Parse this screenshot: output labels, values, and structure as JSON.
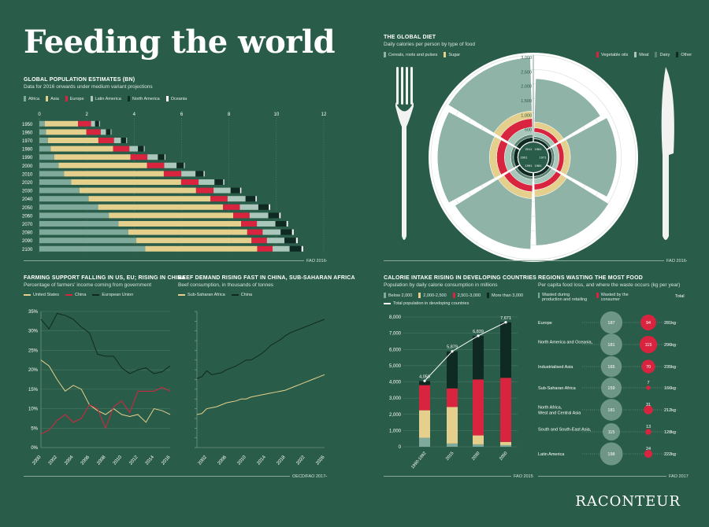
{
  "page": {
    "title": "Feeding the world",
    "brand": "RACONTEUR"
  },
  "colors": {
    "africa": "#7fa99a",
    "asia": "#e4d08c",
    "europe": "#d9243f",
    "latam": "#a9c8bb",
    "namerica": "#0f2a22",
    "oceania": "#ffffff",
    "bg": "#2a5c4a",
    "grid": "#4f7c6a",
    "line_light": "#e4d08c",
    "line_red": "#d9243f",
    "line_dark": "#0f2a22"
  },
  "population": {
    "heading": "GLOBAL POPULATION ESTIMATES (BN)",
    "subheading": "Data for 2016 onwards under medium variant projections",
    "source": "FAO 2016",
    "legend": [
      "Africa",
      "Asia",
      "Europe",
      "Latin America",
      "North America",
      "Oceania"
    ]
  },
  "diet": {
    "heading": "THE GLOBAL DIET",
    "subheading": "Daily calories per person by type of food",
    "source": "FAO 2016",
    "legend_left": [
      "Cereals, roots and pulses",
      "Sugar"
    ],
    "legend_right": [
      "Vegetable oils",
      "Meat",
      "Dairy",
      "Other"
    ]
  },
  "farming": {
    "heading": "FARMING SUPPORT FALLING IN US, EU; RISING IN CHINA",
    "subheading": "Percentage of farmers' income coming from government",
    "legend": [
      "United States",
      "China",
      "European Union"
    ]
  },
  "beef": {
    "heading": "BEEF DEMAND RISING FAST IN CHINA, SUB-SAHARAN AFRICA",
    "subheading": "Beef consumption, in thousands of tonnes",
    "legend": [
      "Sub-Saharan Africa",
      "China"
    ],
    "source": "OECD/FAO 2017"
  },
  "calorie": {
    "heading": "CALORIE INTAKE RISING IN DEVELOPING COUNTRIES",
    "subheading": "Population by daily calorie consumption in millions",
    "legend": [
      "Below 2,000",
      "2,000-2,500",
      "2,501-3,000",
      "More than 3,000",
      "Total population in developing countries"
    ],
    "source": "FAO 2015"
  },
  "waste": {
    "heading": "REGIONS WASTING THE MOST FOOD",
    "subheading": "Per capita food loss, and where the waste occurs (kg per year)",
    "legend_a": "Wasted during production and retailing",
    "legend_b": "Wasted by the consumer",
    "total_label": "Total",
    "source": "FAO 2017"
  },
  "chart_data": [
    {
      "type": "bar",
      "subtype": "stacked-horizontal",
      "categories": [
        "1950",
        "1960",
        "1970",
        "1980",
        "1990",
        "2000",
        "2010",
        "2020",
        "2030",
        "2040",
        "2050",
        "2060",
        "2070",
        "2080",
        "2090",
        "2100"
      ],
      "xlim": [
        0,
        12
      ],
      "xticks": [
        "0",
        "2",
        "4",
        "6",
        "8",
        "10",
        "12"
      ],
      "series": [
        {
          "name": "Africa",
          "values": [
            0.23,
            0.28,
            0.36,
            0.48,
            0.63,
            0.81,
            1.04,
            1.34,
            1.69,
            2.08,
            2.48,
            2.93,
            3.34,
            3.75,
            4.09,
            4.47
          ]
        },
        {
          "name": "Asia",
          "values": [
            1.4,
            1.7,
            2.13,
            2.63,
            3.21,
            3.73,
            4.21,
            4.64,
            4.92,
            5.14,
            5.27,
            5.25,
            5.17,
            5.02,
            4.86,
            4.72
          ]
        },
        {
          "name": "Europe",
          "values": [
            0.55,
            0.61,
            0.66,
            0.69,
            0.72,
            0.73,
            0.74,
            0.74,
            0.74,
            0.72,
            0.71,
            0.69,
            0.67,
            0.65,
            0.65,
            0.65
          ]
        },
        {
          "name": "Latin America",
          "values": [
            0.17,
            0.22,
            0.29,
            0.36,
            0.44,
            0.52,
            0.6,
            0.67,
            0.72,
            0.76,
            0.78,
            0.79,
            0.78,
            0.76,
            0.74,
            0.72
          ]
        },
        {
          "name": "North America",
          "values": [
            0.17,
            0.2,
            0.23,
            0.25,
            0.28,
            0.31,
            0.34,
            0.37,
            0.4,
            0.42,
            0.44,
            0.46,
            0.47,
            0.48,
            0.49,
            0.5
          ]
        },
        {
          "name": "Oceania",
          "values": [
            0.01,
            0.02,
            0.02,
            0.02,
            0.03,
            0.03,
            0.04,
            0.04,
            0.05,
            0.05,
            0.06,
            0.06,
            0.06,
            0.07,
            0.07,
            0.07
          ]
        }
      ]
    },
    {
      "type": "radial-bar",
      "title": "THE GLOBAL DIET",
      "r_ticks": [
        "500",
        "1,000",
        "1,500",
        "2,000",
        "2,500",
        "3,000"
      ],
      "rlim": [
        0,
        3000
      ],
      "categories": [
        "1961",
        "1971",
        "1981",
        "1991",
        "2001",
        "2011"
      ],
      "series": [
        {
          "name": "Cereals, roots and pulses",
          "values": [
            1500,
            1600,
            1700,
            1750,
            1800,
            1850
          ]
        },
        {
          "name": "Sugar",
          "values": [
            200,
            220,
            230,
            240,
            250,
            260
          ]
        },
        {
          "name": "Vegetable oils",
          "values": [
            150,
            170,
            200,
            230,
            270,
            300
          ]
        },
        {
          "name": "Meat",
          "values": [
            150,
            160,
            180,
            200,
            220,
            250
          ]
        },
        {
          "name": "Dairy",
          "values": [
            80,
            80,
            85,
            90,
            95,
            100
          ]
        },
        {
          "name": "Other",
          "values": [
            100,
            110,
            120,
            130,
            140,
            150
          ]
        }
      ]
    },
    {
      "type": "line",
      "x": [
        "2000",
        "2002",
        "2004",
        "2006",
        "2008",
        "2010",
        "2012",
        "2014",
        "2016"
      ],
      "ylim": [
        0,
        35
      ],
      "yticks": [
        "0%",
        "5%",
        "10%",
        "15%",
        "20%",
        "25%",
        "30%",
        "35%"
      ],
      "series": [
        {
          "name": "United States",
          "x": [
            2000,
            2001,
            2002,
            2003,
            2004,
            2005,
            2006,
            2007,
            2008,
            2009,
            2010,
            2011,
            2012,
            2013,
            2014,
            2015,
            2016
          ],
          "values": [
            22.5,
            21,
            17.5,
            14.5,
            16,
            15,
            11,
            9.5,
            8.5,
            10,
            8.5,
            8,
            8.5,
            6.5,
            10,
            9.5,
            8.5
          ]
        },
        {
          "name": "China",
          "x": [
            2000,
            2001,
            2002,
            2003,
            2004,
            2005,
            2006,
            2007,
            2008,
            2009,
            2010,
            2011,
            2012,
            2013,
            2014,
            2015,
            2016
          ],
          "values": [
            3.5,
            4.5,
            7,
            8.5,
            6.5,
            7.5,
            11,
            10,
            5,
            10.5,
            12,
            9,
            14.5,
            14.5,
            14.5,
            15.5,
            14.5
          ]
        },
        {
          "name": "European Union",
          "x": [
            2000,
            2001,
            2002,
            2003,
            2004,
            2005,
            2006,
            2007,
            2008,
            2009,
            2010,
            2011,
            2012,
            2013,
            2014,
            2015,
            2016
          ],
          "values": [
            33,
            30.5,
            34.5,
            34,
            33,
            31,
            29.5,
            24,
            23.5,
            23.5,
            20.5,
            19,
            20,
            20.5,
            19,
            19.5,
            21
          ]
        }
      ]
    },
    {
      "type": "line",
      "x": [
        "2002",
        "2006",
        "2010",
        "2014",
        "2018",
        "2022",
        "2026"
      ],
      "ylim": [
        0,
        7000
      ],
      "series": [
        {
          "name": "Sub-Saharan Africa",
          "x": [
            2000,
            2001,
            2002,
            2003,
            2004,
            2005,
            2006,
            2007,
            2008,
            2009,
            2010,
            2011,
            2012,
            2013,
            2014,
            2015,
            2016,
            2017,
            2018,
            2019,
            2020,
            2021,
            2022,
            2023,
            2024,
            2025,
            2026
          ],
          "values": [
            1700,
            1750,
            2000,
            2050,
            2100,
            2200,
            2300,
            2350,
            2400,
            2500,
            2500,
            2600,
            2650,
            2700,
            2750,
            2800,
            2850,
            2900,
            2950,
            3050,
            3150,
            3250,
            3350,
            3450,
            3550,
            3650,
            3750
          ]
        },
        {
          "name": "China",
          "x": [
            2000,
            2001,
            2002,
            2003,
            2004,
            2005,
            2006,
            2007,
            2008,
            2009,
            2010,
            2011,
            2012,
            2013,
            2014,
            2015,
            2016,
            2017,
            2018,
            2019,
            2020,
            2021,
            2022,
            2023,
            2024,
            2025,
            2026
          ],
          "values": [
            3550,
            3650,
            3950,
            3750,
            3800,
            3850,
            4000,
            4100,
            4200,
            4350,
            4500,
            4500,
            4650,
            4800,
            5000,
            5250,
            5400,
            5550,
            5750,
            5900,
            6000,
            6100,
            6200,
            6300,
            6400,
            6500,
            6600
          ]
        }
      ]
    },
    {
      "type": "bar",
      "subtype": "stacked",
      "categories": [
        "1990-1992",
        "2015",
        "2030",
        "2050"
      ],
      "ylim": [
        0,
        8000
      ],
      "yticks": [
        "0",
        "1,000",
        "2,000",
        "3,000",
        "4,000",
        "5,000",
        "6,000",
        "7,000",
        "8,000"
      ],
      "series": [
        {
          "name": "Below 2,000",
          "values": [
            550,
            200,
            150,
            100
          ]
        },
        {
          "name": "2,000-2,500",
          "values": [
            1700,
            2250,
            550,
            200
          ]
        },
        {
          "name": "2,501-3,000",
          "values": [
            1550,
            1150,
            3450,
            3950
          ]
        },
        {
          "name": "More than 3,000",
          "values": [
            250,
            2280,
            2680,
            3420
          ]
        }
      ],
      "totals": {
        "name": "Total population in developing countries",
        "values": [
          4059,
          5879,
          6839,
          7671
        ],
        "labels": [
          "4,059",
          "5,879",
          "6,839",
          "7,671"
        ]
      }
    },
    {
      "type": "bubble",
      "categories": [
        "Europe",
        "North America and Oceania",
        "Industrialised Asia",
        "Sub-Saharan Africa",
        "North Africa, West and Central Asia",
        "South and South-East Asia",
        "Latin America"
      ],
      "series": [
        {
          "name": "Wasted during production and retailing",
          "values": [
            187,
            181,
            165,
            159,
            181,
            115,
            198
          ]
        },
        {
          "name": "Wasted by the consumer",
          "values": [
            94,
            115,
            70,
            7,
            31,
            13,
            24
          ]
        }
      ],
      "totals": [
        "281kg",
        "296kg",
        "235kg",
        "166kg",
        "212kg",
        "128kg",
        "222kg"
      ]
    }
  ]
}
